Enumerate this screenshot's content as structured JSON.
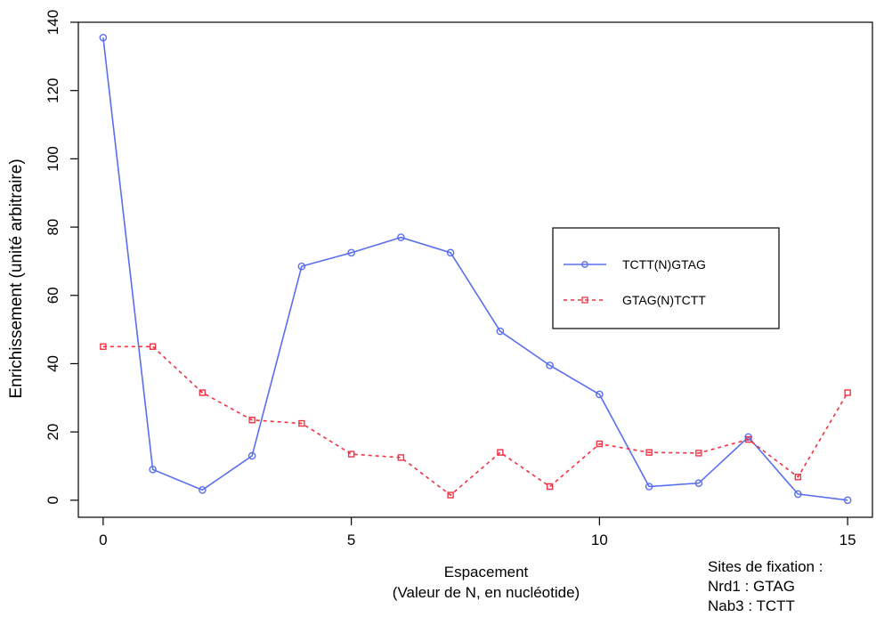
{
  "chart_data": {
    "type": "line",
    "title": "",
    "xlabel": [
      "Espacement",
      "(Valeur de N, en nucléotide)"
    ],
    "ylabel": "Enrichissement  (unité arbitraire)",
    "xlim": [
      -0.5,
      15.5
    ],
    "ylim": [
      -5,
      140
    ],
    "xticks": [
      0,
      5,
      10,
      15
    ],
    "yticks": [
      0,
      20,
      40,
      60,
      80,
      100,
      120,
      140
    ],
    "grid": false,
    "legend_position": "right",
    "x": [
      0,
      1,
      2,
      3,
      4,
      5,
      6,
      7,
      8,
      9,
      10,
      11,
      12,
      13,
      14,
      15
    ],
    "series": [
      {
        "name": "TCTT(N)GTAG",
        "color": "#5a6ff0",
        "marker": "circle",
        "line_style": "solid",
        "values": [
          135.5,
          9,
          3,
          13,
          68.5,
          72.5,
          77,
          72.5,
          49.5,
          39.5,
          31,
          4,
          5,
          18.5,
          1.8,
          0
        ]
      },
      {
        "name": "GTAG(N)TCTT",
        "color": "#ee3344",
        "marker": "square",
        "line_style": "dashed",
        "values": [
          45,
          45,
          31.5,
          23.5,
          22.5,
          13.5,
          12.5,
          1.5,
          14,
          4,
          16.5,
          14,
          13.8,
          17.8,
          6.8,
          31.5
        ]
      }
    ]
  },
  "annotation": {
    "lines": [
      "Sites de fixation :",
      "Nrd1 : GTAG",
      "Nab3 : TCTT"
    ]
  }
}
